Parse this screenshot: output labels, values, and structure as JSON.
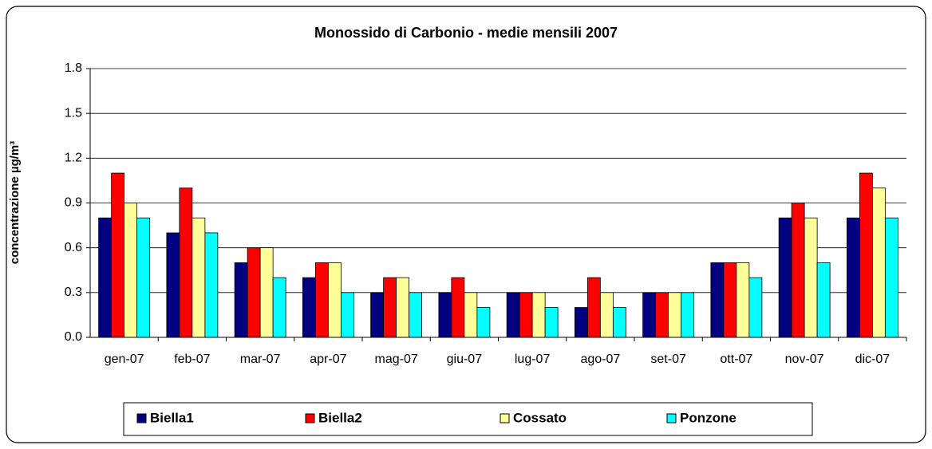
{
  "chart_data": {
    "type": "bar",
    "title": "Monossido di Carbonio - medie mensili 2007",
    "y_label": "concentrazione µg/m³",
    "categories": [
      "gen-07",
      "feb-07",
      "mar-07",
      "apr-07",
      "mag-07",
      "giu-07",
      "lug-07",
      "ago-07",
      "set-07",
      "ott-07",
      "nov-07",
      "dic-07"
    ],
    "series": [
      {
        "name": "Biella1",
        "color": "#000080",
        "values": [
          0.8,
          0.7,
          0.5,
          0.4,
          0.3,
          0.3,
          0.3,
          0.2,
          0.3,
          0.5,
          0.8,
          0.8
        ]
      },
      {
        "name": "Biella2",
        "color": "#ff0000",
        "values": [
          1.1,
          1.0,
          0.6,
          0.5,
          0.4,
          0.4,
          0.3,
          0.4,
          0.3,
          0.5,
          0.9,
          1.1
        ]
      },
      {
        "name": "Cossato",
        "color": "#ffff99",
        "values": [
          0.9,
          0.8,
          0.6,
          0.5,
          0.4,
          0.3,
          0.3,
          0.3,
          0.3,
          0.5,
          0.8,
          1.0
        ]
      },
      {
        "name": "Ponzone",
        "color": "#00ffff",
        "values": [
          0.8,
          0.7,
          0.4,
          0.3,
          0.3,
          0.2,
          0.2,
          0.2,
          0.3,
          0.4,
          0.5,
          0.8
        ]
      }
    ],
    "ylim": [
      0,
      1.8
    ],
    "yticks": [
      {
        "value": 0,
        "label": "0.0"
      },
      0.3,
      0.6,
      0.9,
      1.2,
      1.5,
      1.8
    ],
    "grid": true,
    "legend": "bottom"
  }
}
